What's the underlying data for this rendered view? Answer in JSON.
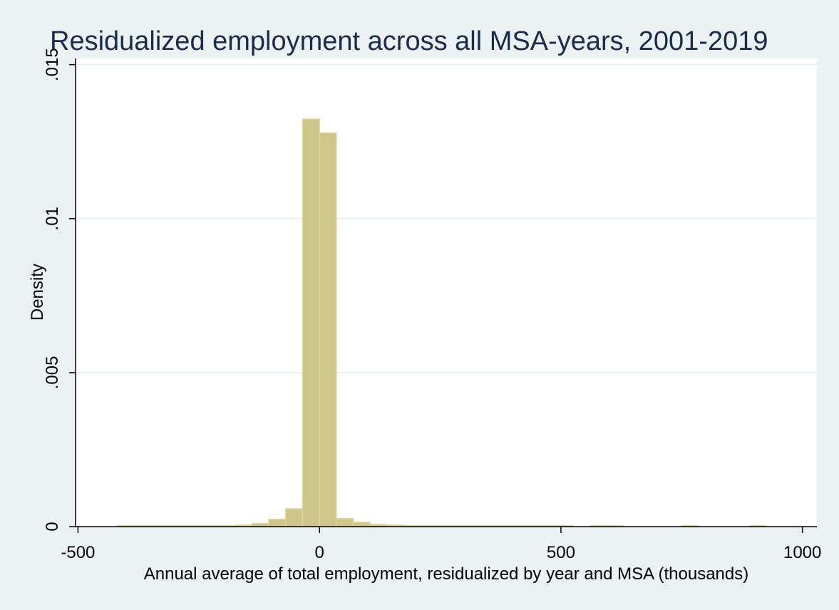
{
  "chart_data": {
    "type": "bar",
    "title": "Residualized employment across all MSA-years, 2001-2019",
    "xlabel": "Annual average of total employment, residualized by year and MSA (thousands)",
    "ylabel": "Density",
    "xlim": [
      -505,
      1030
    ],
    "ylim": [
      0,
      0.0152
    ],
    "x_ticks": [
      {
        "value": -500,
        "label": "-500"
      },
      {
        "value": 0,
        "label": "0"
      },
      {
        "value": 500,
        "label": "500"
      },
      {
        "value": 1000,
        "label": "1000"
      }
    ],
    "y_ticks": [
      {
        "value": 0,
        "label": "0"
      },
      {
        "value": 0.005,
        "label": ".005"
      },
      {
        "value": 0.01,
        "label": ".01"
      },
      {
        "value": 0.015,
        "label": ".015"
      }
    ],
    "grid": true,
    "bin_width": 35,
    "bars": [
      {
        "x0": -420,
        "density": 3e-05
      },
      {
        "x0": -385,
        "density": 3e-05
      },
      {
        "x0": -350,
        "density": 3e-05
      },
      {
        "x0": -315,
        "density": 3e-05
      },
      {
        "x0": -280,
        "density": 3e-05
      },
      {
        "x0": -245,
        "density": 3e-05
      },
      {
        "x0": -210,
        "density": 3e-05
      },
      {
        "x0": -175,
        "density": 5e-05
      },
      {
        "x0": -140,
        "density": 0.0001
      },
      {
        "x0": -105,
        "density": 0.00024
      },
      {
        "x0": -70,
        "density": 0.00058
      },
      {
        "x0": -35,
        "density": 0.01323
      },
      {
        "x0": 0,
        "density": 0.01278
      },
      {
        "x0": 35,
        "density": 0.00026
      },
      {
        "x0": 70,
        "density": 0.00014
      },
      {
        "x0": 105,
        "density": 7e-05
      },
      {
        "x0": 140,
        "density": 5e-05
      },
      {
        "x0": 175,
        "density": 3e-05
      },
      {
        "x0": 210,
        "density": 3e-05
      },
      {
        "x0": 245,
        "density": 3e-05
      },
      {
        "x0": 280,
        "density": 3e-05
      },
      {
        "x0": 315,
        "density": 3e-05
      },
      {
        "x0": 350,
        "density": 3e-05
      },
      {
        "x0": 385,
        "density": 3e-05
      },
      {
        "x0": 420,
        "density": 3e-05
      },
      {
        "x0": 455,
        "density": 3e-05
      },
      {
        "x0": 490,
        "density": 3e-05
      },
      {
        "x0": 560,
        "density": 3e-05
      },
      {
        "x0": 595,
        "density": 3e-05
      },
      {
        "x0": 750,
        "density": 3e-05
      },
      {
        "x0": 890,
        "density": 3e-05
      }
    ]
  },
  "colors": {
    "background": "#eaf2f3",
    "plot_background": "#ffffff",
    "bar_fill": "#cfc68a",
    "bar_stroke": "#dcd5a3",
    "grid": "#e3eeee",
    "axis": "#000000",
    "title": "#1a2b4c"
  }
}
